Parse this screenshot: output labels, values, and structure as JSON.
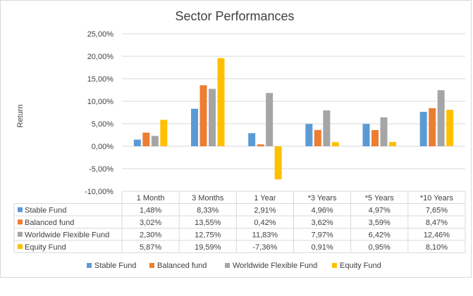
{
  "chart_data": {
    "type": "bar",
    "title": "Sector Performances",
    "ylabel": "Return",
    "xlabel": "",
    "ylim": [
      -10,
      25
    ],
    "y_ticks": [
      25,
      20,
      15,
      10,
      5,
      0,
      -5,
      -10
    ],
    "y_tick_labels": [
      "25,00%",
      "20,00%",
      "15,00%",
      "10,00%",
      "5,00%",
      "0,00%",
      "-5,00%",
      "-10,00%"
    ],
    "categories": [
      "1 Month",
      "3 Months",
      "1 Year",
      "*3 Years",
      "*5 Years",
      "*10 Years"
    ],
    "series": [
      {
        "name": "Stable Fund",
        "color": "#5b9bd5",
        "values": [
          1.48,
          8.33,
          2.91,
          4.96,
          4.97,
          7.65
        ],
        "labels": [
          "1,48%",
          "8,33%",
          "2,91%",
          "4,96%",
          "4,97%",
          "7,65%"
        ]
      },
      {
        "name": "Balanced fund",
        "color": "#ed7d31",
        "values": [
          3.02,
          13.55,
          0.42,
          3.62,
          3.59,
          8.47
        ],
        "labels": [
          "3,02%",
          "13,55%",
          "0,42%",
          "3,62%",
          "3,59%",
          "8,47%"
        ]
      },
      {
        "name": "Worldwide Flexible Fund",
        "color": "#a5a5a5",
        "values": [
          2.3,
          12.75,
          11.83,
          7.97,
          6.42,
          12.46
        ],
        "labels": [
          "2,30%",
          "12,75%",
          "11,83%",
          "7,97%",
          "6,42%",
          "12,46%"
        ]
      },
      {
        "name": "Equity Fund",
        "color": "#ffc000",
        "values": [
          5.87,
          19.59,
          -7.36,
          0.91,
          0.95,
          8.1
        ],
        "labels": [
          "5,87%",
          "19,59%",
          "-7,36%",
          "0,91%",
          "0,95%",
          "8,10%"
        ]
      }
    ],
    "grid": true,
    "legend_position": "bottom",
    "data_table": true
  }
}
